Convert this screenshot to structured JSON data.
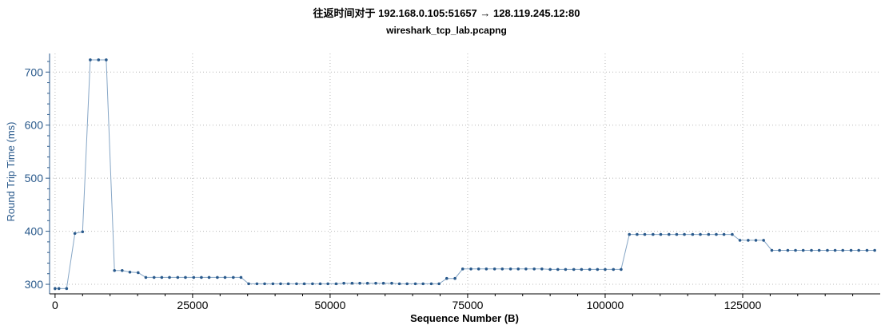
{
  "header": {
    "title": "往返时间对于 192.168.0.105:51657 → 128.119.245.12:80",
    "subtitle": "wireshark_tcp_lab.pcapng"
  },
  "colors": {
    "series": "#2a5a8c",
    "line": "#86a6c6",
    "grid": "#b8b8b8",
    "axis_y": "#2a5a8c",
    "axis_x": "#000000"
  },
  "chart_data": {
    "type": "line",
    "title": "往返时间对于 192.168.0.105:51657 → 128.119.245.12:80",
    "subtitle": "wireshark_tcp_lab.pcapng",
    "xlabel": "Sequence Number (B)",
    "ylabel": "Round Trip Time (ms)",
    "xlim": [
      -1000,
      150000
    ],
    "ylim": [
      282,
      735
    ],
    "x_ticks": [
      0,
      25000,
      50000,
      75000,
      100000,
      125000
    ],
    "y_ticks": [
      300,
      400,
      500,
      600,
      700
    ],
    "grid": true,
    "series": [
      {
        "name": "",
        "x": [
          0,
          700,
          2100,
          3600,
          5000,
          6400,
          7900,
          9300,
          10800,
          12200,
          13600,
          15100,
          16500,
          18000,
          19400,
          20800,
          22300,
          23700,
          25200,
          26600,
          28000,
          29500,
          30900,
          32400,
          33800,
          35200,
          36700,
          38100,
          39600,
          41000,
          42400,
          43900,
          45300,
          46800,
          48200,
          49600,
          51100,
          52500,
          54000,
          55400,
          56800,
          58300,
          59700,
          61200,
          62600,
          64000,
          65500,
          66900,
          68400,
          69800,
          71200,
          72700,
          74100,
          75600,
          77000,
          78400,
          79900,
          81300,
          82800,
          84200,
          85600,
          87100,
          88500,
          90000,
          91400,
          92800,
          94300,
          95700,
          97200,
          98600,
          100000,
          101500,
          102900,
          104400,
          105800,
          107200,
          108700,
          110100,
          111600,
          113000,
          114400,
          115900,
          117300,
          118800,
          120200,
          121600,
          123100,
          124500,
          126000,
          127400,
          128800,
          130300,
          131700,
          133200,
          134600,
          136000,
          137500,
          138900,
          140400,
          141800,
          143200,
          144700,
          146100,
          147600,
          149000
        ],
        "y": [
          292,
          292,
          292,
          396,
          399,
          723,
          723,
          723,
          326,
          326,
          323,
          322,
          313,
          313,
          313,
          313,
          313,
          313,
          313,
          313,
          313,
          313,
          313,
          313,
          313,
          301,
          301,
          301,
          301,
          301,
          301,
          301,
          301,
          301,
          301,
          301,
          301,
          302,
          302,
          302,
          302,
          302,
          302,
          302,
          301,
          301,
          301,
          301,
          301,
          301,
          311,
          311,
          329,
          329,
          329,
          329,
          329,
          329,
          329,
          329,
          329,
          329,
          329,
          328,
          328,
          328,
          328,
          328,
          328,
          328,
          328,
          328,
          328,
          394,
          394,
          394,
          394,
          394,
          394,
          394,
          394,
          394,
          394,
          394,
          394,
          394,
          394,
          383,
          383,
          383,
          383,
          364,
          364,
          364,
          364,
          364,
          364,
          364,
          364,
          364,
          364,
          364,
          364,
          364,
          364
        ]
      }
    ]
  }
}
